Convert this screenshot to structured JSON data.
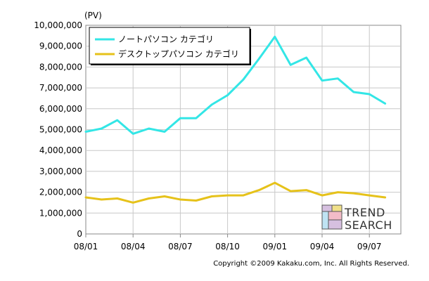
{
  "chart_data": {
    "type": "line",
    "y_unit": "(PV)",
    "ylim": [
      0,
      10000000
    ],
    "yticks": [
      "0",
      "1,000,000",
      "2,000,000",
      "3,000,000",
      "4,000,000",
      "5,000,000",
      "6,000,000",
      "7,000,000",
      "8,000,000",
      "9,000,000",
      "10,000,000"
    ],
    "x": [
      "08/01",
      "08/02",
      "08/03",
      "08/04",
      "08/05",
      "08/06",
      "08/07",
      "08/08",
      "08/09",
      "08/10",
      "08/11",
      "08/12",
      "09/01",
      "09/02",
      "09/03",
      "09/04",
      "09/05",
      "09/06",
      "09/07",
      "09/08"
    ],
    "xtick_labels": [
      "08/01",
      "08/04",
      "08/07",
      "08/10",
      "09/01",
      "09/04",
      "09/07"
    ],
    "grid": true,
    "legend_position": "top-left",
    "series": [
      {
        "name": "ノートパソコン カテゴリ",
        "color": "#33e6e6",
        "values": [
          4900000,
          5050000,
          5450000,
          4800000,
          5050000,
          4900000,
          5550000,
          5550000,
          6200000,
          6650000,
          7400000,
          8400000,
          9450000,
          8100000,
          8450000,
          7350000,
          7450000,
          6800000,
          6700000,
          6250000
        ]
      },
      {
        "name": "デスクトップパソコン カテゴリ",
        "color": "#e6c21a",
        "values": [
          1750000,
          1650000,
          1700000,
          1500000,
          1700000,
          1800000,
          1650000,
          1600000,
          1800000,
          1850000,
          1850000,
          2100000,
          2450000,
          2050000,
          2100000,
          1850000,
          2000000,
          1950000,
          1850000,
          1750000
        ]
      }
    ]
  },
  "logo": {
    "line1": "TREND",
    "line2": "SEARCH",
    "icon_colors": [
      "#d6c0e0",
      "#f0e08a",
      "#bfe3f3",
      "#f3bcc8"
    ]
  },
  "copyright": "Copyright ©2009 Kakaku.com, Inc. All Rights Reserved."
}
